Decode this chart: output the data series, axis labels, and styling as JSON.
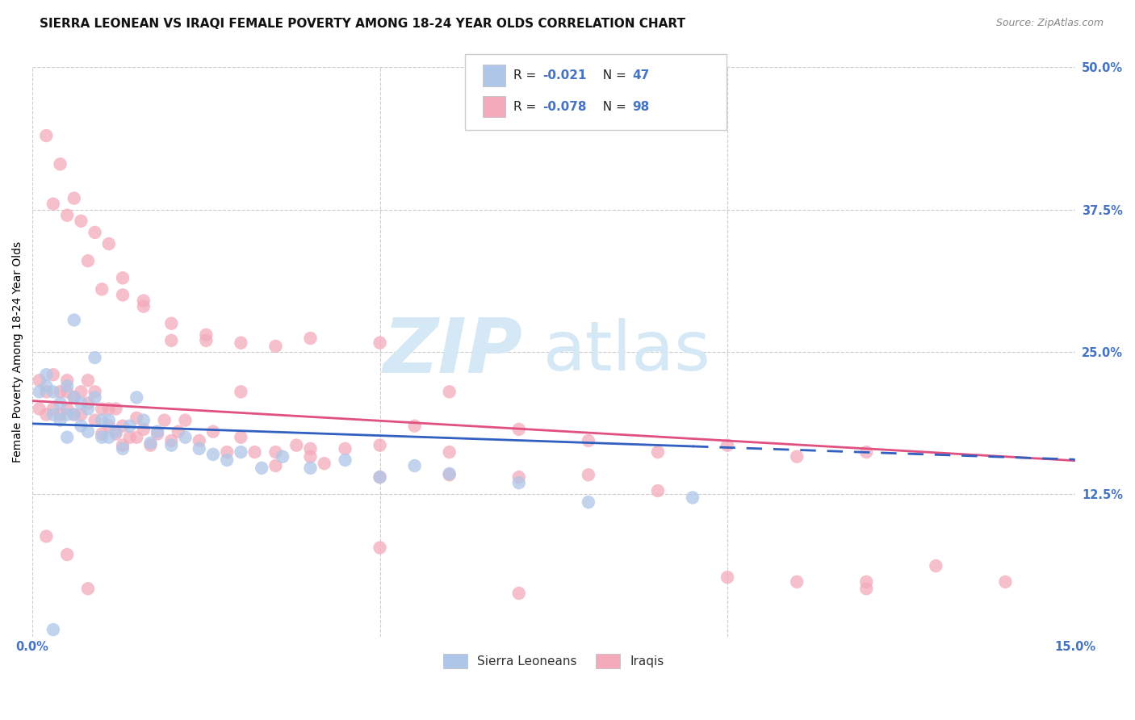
{
  "title": "SIERRA LEONEAN VS IRAQI FEMALE POVERTY AMONG 18-24 YEAR OLDS CORRELATION CHART",
  "source": "Source: ZipAtlas.com",
  "ylabel": "Female Poverty Among 18-24 Year Olds",
  "xlim": [
    0.0,
    0.15
  ],
  "ylim": [
    0.0,
    0.5
  ],
  "ytick_labels_right": [
    "12.5%",
    "25.0%",
    "37.5%",
    "50.0%"
  ],
  "yticks_right": [
    0.125,
    0.25,
    0.375,
    0.5
  ],
  "legend_entry1_r": "-0.021",
  "legend_entry1_n": "47",
  "legend_entry2_r": "-0.078",
  "legend_entry2_n": "98",
  "legend_label1": "Sierra Leoneans",
  "legend_label2": "Iraqis",
  "sierra_color": "#AEC6E8",
  "iraqi_color": "#F4AABB",
  "sierra_line_color": "#3060C0",
  "iraqi_line_color": "#E05080",
  "blue_text_color": "#4472C4",
  "background_color": "#FFFFFF",
  "grid_color": "#CCCCCC",
  "watermark_color": "#D5E8F5",
  "title_fontsize": 11,
  "axis_label_fontsize": 10,
  "tick_fontsize": 10.5,
  "source_fontsize": 9,
  "sierra_x": [
    0.001,
    0.002,
    0.002,
    0.003,
    0.003,
    0.004,
    0.004,
    0.005,
    0.005,
    0.005,
    0.006,
    0.006,
    0.007,
    0.007,
    0.008,
    0.008,
    0.009,
    0.01,
    0.01,
    0.011,
    0.011,
    0.012,
    0.013,
    0.014,
    0.015,
    0.016,
    0.017,
    0.018,
    0.02,
    0.022,
    0.024,
    0.026,
    0.028,
    0.03,
    0.033,
    0.036,
    0.04,
    0.045,
    0.05,
    0.055,
    0.06,
    0.07,
    0.08,
    0.095,
    0.003,
    0.006,
    0.009
  ],
  "sierra_y": [
    0.215,
    0.23,
    0.22,
    0.215,
    0.195,
    0.205,
    0.19,
    0.22,
    0.195,
    0.175,
    0.21,
    0.195,
    0.205,
    0.185,
    0.2,
    0.18,
    0.21,
    0.19,
    0.175,
    0.19,
    0.175,
    0.18,
    0.165,
    0.185,
    0.21,
    0.19,
    0.17,
    0.18,
    0.168,
    0.175,
    0.165,
    0.16,
    0.155,
    0.162,
    0.148,
    0.158,
    0.148,
    0.155,
    0.14,
    0.15,
    0.143,
    0.135,
    0.118,
    0.122,
    0.006,
    0.278,
    0.245
  ],
  "iraqi_x": [
    0.001,
    0.001,
    0.002,
    0.002,
    0.003,
    0.003,
    0.004,
    0.004,
    0.005,
    0.005,
    0.005,
    0.006,
    0.006,
    0.007,
    0.007,
    0.008,
    0.008,
    0.009,
    0.009,
    0.01,
    0.01,
    0.011,
    0.011,
    0.012,
    0.012,
    0.013,
    0.013,
    0.014,
    0.015,
    0.015,
    0.016,
    0.017,
    0.018,
    0.019,
    0.02,
    0.021,
    0.022,
    0.024,
    0.026,
    0.028,
    0.03,
    0.032,
    0.035,
    0.038,
    0.04,
    0.042,
    0.045,
    0.05,
    0.055,
    0.06,
    0.003,
    0.005,
    0.007,
    0.009,
    0.011,
    0.013,
    0.016,
    0.02,
    0.025,
    0.03,
    0.035,
    0.04,
    0.05,
    0.06,
    0.07,
    0.08,
    0.09,
    0.1,
    0.11,
    0.12,
    0.002,
    0.004,
    0.006,
    0.008,
    0.01,
    0.013,
    0.016,
    0.02,
    0.025,
    0.03,
    0.035,
    0.04,
    0.05,
    0.06,
    0.07,
    0.08,
    0.09,
    0.1,
    0.11,
    0.12,
    0.13,
    0.14,
    0.002,
    0.05,
    0.12,
    0.005,
    0.008,
    0.07
  ],
  "iraqi_y": [
    0.225,
    0.2,
    0.215,
    0.195,
    0.23,
    0.2,
    0.215,
    0.195,
    0.215,
    0.225,
    0.2,
    0.21,
    0.195,
    0.215,
    0.195,
    0.205,
    0.225,
    0.19,
    0.215,
    0.2,
    0.178,
    0.2,
    0.185,
    0.178,
    0.2,
    0.185,
    0.168,
    0.175,
    0.192,
    0.175,
    0.182,
    0.168,
    0.178,
    0.19,
    0.172,
    0.18,
    0.19,
    0.172,
    0.18,
    0.162,
    0.175,
    0.162,
    0.162,
    0.168,
    0.165,
    0.152,
    0.165,
    0.168,
    0.185,
    0.162,
    0.38,
    0.37,
    0.365,
    0.355,
    0.345,
    0.3,
    0.29,
    0.275,
    0.265,
    0.258,
    0.255,
    0.262,
    0.258,
    0.215,
    0.182,
    0.172,
    0.162,
    0.168,
    0.158,
    0.162,
    0.44,
    0.415,
    0.385,
    0.33,
    0.305,
    0.315,
    0.295,
    0.26,
    0.26,
    0.215,
    0.15,
    0.158,
    0.14,
    0.142,
    0.14,
    0.142,
    0.128,
    0.052,
    0.048,
    0.048,
    0.062,
    0.048,
    0.088,
    0.078,
    0.042,
    0.072,
    0.042,
    0.038
  ]
}
